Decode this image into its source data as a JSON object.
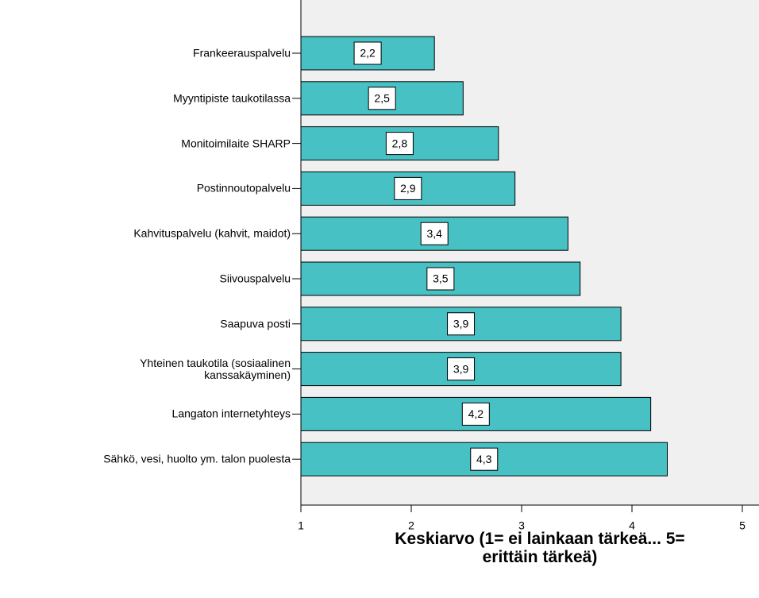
{
  "chart_data": {
    "type": "bar",
    "orientation": "horizontal",
    "x_label": "Keskiarvo (1= ei lainkaan tärkeä... 5=\nerittäin tärkeä)",
    "categories": [
      "Frankeerauspalvelu",
      "Myyntipiste taukotilassa",
      "Monitoimilaite SHARP",
      "Postinnoutopalvelu",
      "Kahvituspalvelu (kahvit, maidot)",
      "Siivouspalvelu",
      "Saapuva posti",
      "Yhteinen taukotila (sosiaalinen\nkanssakäyminen)",
      "Langaton internetyhteys",
      "Sähkö, vesi, huolto ym. talon puolesta"
    ],
    "values": [
      2.21,
      2.47,
      2.79,
      2.94,
      3.42,
      3.53,
      3.9,
      3.9,
      4.17,
      4.32
    ],
    "value_labels": [
      "2,2",
      "2,5",
      "2,8",
      "2,9",
      "3,4",
      "3,5",
      "3,9",
      "3,9",
      "4,2",
      "4,3"
    ],
    "color": "#48c1c4",
    "xlim": [
      1,
      5
    ],
    "xticks": [
      1,
      2,
      3,
      4,
      5
    ]
  }
}
